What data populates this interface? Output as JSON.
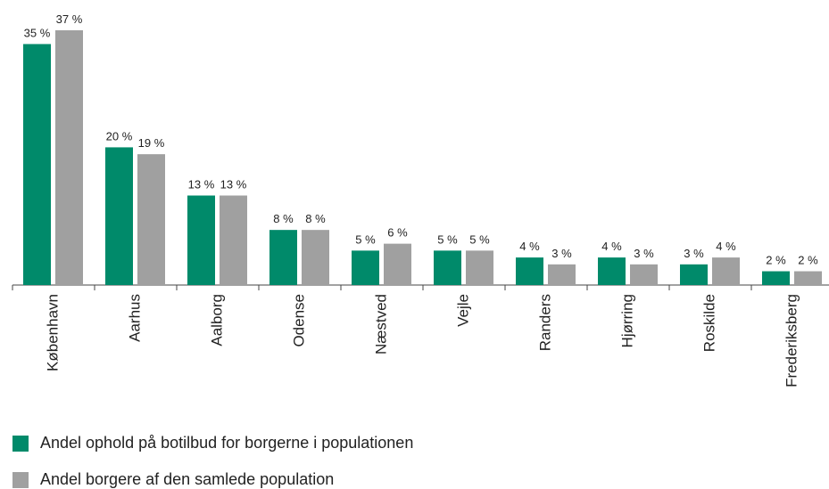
{
  "chart_data": {
    "type": "bar",
    "categories": [
      "København",
      "Aarhus",
      "Aalborg",
      "Odense",
      "Næstved",
      "Vejle",
      "Randers",
      "Hjørring",
      "Roskilde",
      "Frederiksberg"
    ],
    "series": [
      {
        "name": "Andel ophold på botilbud for borgerne i populationen",
        "color": "#008a6a",
        "values": [
          35,
          20,
          13,
          8,
          5,
          5,
          4,
          4,
          3,
          2
        ],
        "value_labels": [
          "35 %",
          "20 %",
          "13 %",
          "8 %",
          "5 %",
          "5 %",
          "4 %",
          "4 %",
          "3 %",
          "2 %"
        ]
      },
      {
        "name": "Andel borgere af den samlede population",
        "color": "#a0a0a0",
        "values": [
          37,
          19,
          13,
          8,
          6,
          5,
          3,
          3,
          4,
          2
        ],
        "value_labels": [
          "37 %",
          "19 %",
          "13 %",
          "8 %",
          "6 %",
          "5 %",
          "3 %",
          "3 %",
          "4 %",
          "2 %"
        ]
      }
    ]
  }
}
